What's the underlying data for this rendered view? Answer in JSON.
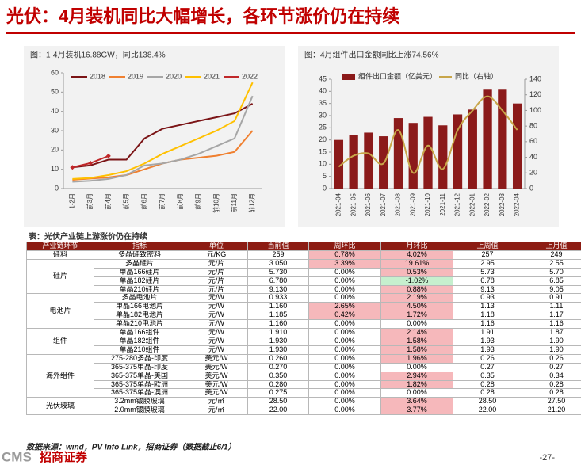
{
  "header": {
    "title": "光伏：4月装机同比大幅增长，各环节涨价仍在持续"
  },
  "chart_data": [
    {
      "type": "line",
      "title": "图：1-4月装机16.88GW，同比138.4%",
      "categories": [
        "1-2月",
        "前3月",
        "前4月",
        "前5月",
        "前6月",
        "前7月",
        "前8月",
        "前9月",
        "前10月",
        "前11月",
        "前12月"
      ],
      "ylim": [
        0,
        60
      ],
      "yticks": [
        0,
        10,
        20,
        30,
        40,
        50,
        60
      ],
      "series": [
        {
          "name": "2018",
          "color": "#7b1416",
          "values": [
            11,
            12,
            15,
            15,
            26,
            31,
            33,
            35,
            37,
            39,
            44
          ]
        },
        {
          "name": "2019",
          "color": "#f08030",
          "values": [
            4.5,
            5.2,
            5.8,
            7,
            10,
            13,
            15,
            16,
            17,
            19,
            30
          ]
        },
        {
          "name": "2020",
          "color": "#a6a6a6",
          "values": [
            3.5,
            4,
            5,
            7,
            12,
            13,
            15,
            18,
            22,
            26,
            48
          ]
        },
        {
          "name": "2021",
          "color": "#ffc000",
          "values": [
            5,
            5.5,
            7,
            9,
            13,
            18,
            22,
            26,
            30,
            35,
            55
          ]
        },
        {
          "name": "2022",
          "color": "#c0282a",
          "marker": true,
          "values": [
            11,
            13.2,
            16.88,
            null,
            null,
            null,
            null,
            null,
            null,
            null,
            null
          ]
        }
      ]
    },
    {
      "type": "bar-line",
      "title": "图：4月组件出口金额同比上涨74.56%",
      "categories": [
        "2021-04",
        "2021-05",
        "2021-06",
        "2021-07",
        "2021-08",
        "2021-09",
        "2021-10",
        "2021-11",
        "2021-12",
        "2022-01",
        "2022-02",
        "2022-03",
        "2022-04"
      ],
      "ylim": [
        0,
        45
      ],
      "yticks": [
        0,
        5,
        10,
        15,
        20,
        25,
        30,
        35,
        40,
        45
      ],
      "y2lim": [
        0,
        140
      ],
      "y2ticks": [
        0,
        20,
        40,
        60,
        80,
        100,
        120,
        140
      ],
      "series": [
        {
          "name": "组件出口金额（亿美元）",
          "color": "#8b1a1a",
          "kind": "bar",
          "values": [
            20,
            22,
            23,
            21.5,
            29,
            27,
            29.5,
            26,
            30.5,
            32.5,
            41,
            41,
            35
          ]
        },
        {
          "name": "同比（右轴）",
          "color": "#c8a64a",
          "kind": "line",
          "axis": "y2",
          "values": [
            28,
            42,
            45,
            32,
            75,
            20,
            55,
            25,
            75,
            100,
            118,
            100,
            75
          ]
        }
      ]
    }
  ],
  "table": {
    "title": "表：光伏产业链上游涨价仍在持续",
    "columns": [
      "产业链环节",
      "指标",
      "单位",
      "当前值",
      "周环比",
      "月环比",
      "上周值",
      "上月值"
    ],
    "groups": [
      {
        "name": "硅料",
        "rows": [
          [
            "多晶硅致密料",
            "元/KG",
            "259",
            "0.78%",
            "4.02%",
            "257",
            "249"
          ]
        ]
      },
      {
        "name": "硅片",
        "rows": [
          [
            "多晶硅片",
            "元/片",
            "3.050",
            "3.39%",
            "19.61%",
            "2.95",
            "2.55"
          ],
          [
            "单晶166硅片",
            "元/片",
            "5.730",
            "0.00%",
            "0.53%",
            "5.73",
            "5.70"
          ],
          [
            "单晶182硅片",
            "元/片",
            "6.780",
            "0.00%",
            "-1.02%",
            "6.78",
            "6.85"
          ],
          [
            "单晶210硅片",
            "元/片",
            "9.130",
            "0.00%",
            "0.88%",
            "9.13",
            "9.05"
          ]
        ]
      },
      {
        "name": "电池片",
        "rows": [
          [
            "多晶电池片",
            "元/W",
            "0.933",
            "0.00%",
            "2.19%",
            "0.93",
            "0.91"
          ],
          [
            "单晶166电池片",
            "元/W",
            "1.160",
            "2.65%",
            "4.50%",
            "1.13",
            "1.11"
          ],
          [
            "单晶182电池片",
            "元/W",
            "1.185",
            "0.42%",
            "1.72%",
            "1.18",
            "1.17"
          ],
          [
            "单晶210电池片",
            "元/W",
            "1.160",
            "0.00%",
            "0.00%",
            "1.16",
            "1.16"
          ]
        ]
      },
      {
        "name": "组件",
        "rows": [
          [
            "单晶166组件",
            "元/W",
            "1.910",
            "0.00%",
            "2.14%",
            "1.91",
            "1.87"
          ],
          [
            "单晶182组件",
            "元/W",
            "1.930",
            "0.00%",
            "1.58%",
            "1.93",
            "1.90"
          ],
          [
            "单晶210组件",
            "元/W",
            "1.930",
            "0.00%",
            "1.58%",
            "1.93",
            "1.90"
          ]
        ]
      },
      {
        "name": "海外组件",
        "rows": [
          [
            "275-280多晶-印度",
            "美元/W",
            "0.260",
            "0.00%",
            "1.96%",
            "0.26",
            "0.26"
          ],
          [
            "365-375单晶-印度",
            "美元/W",
            "0.270",
            "0.00%",
            "0.00%",
            "0.27",
            "0.27"
          ],
          [
            "365-375单晶-美国",
            "美元/W",
            "0.350",
            "0.00%",
            "2.94%",
            "0.35",
            "0.34"
          ],
          [
            "365-375单晶-欧洲",
            "美元/W",
            "0.280",
            "0.00%",
            "1.82%",
            "0.28",
            "0.28"
          ],
          [
            "365-375单晶-澳洲",
            "美元/W",
            "0.275",
            "0.00%",
            "0.00%",
            "0.28",
            "0.28"
          ]
        ]
      },
      {
        "name": "光伏玻璃",
        "rows": [
          [
            "3.2mm镀膜玻璃",
            "元/㎡",
            "28.50",
            "0.00%",
            "3.64%",
            "28.50",
            "27.50"
          ],
          [
            "2.0mm镀膜玻璃",
            "元/㎡",
            "22.00",
            "0.00%",
            "3.77%",
            "22.00",
            "21.20"
          ]
        ]
      }
    ]
  },
  "footer": {
    "source": "数据来源：wind，PV Info Link，招商证券（数据截止6/1）",
    "logo": "CMS",
    "logo_name": "招商证券",
    "page": "-27-"
  }
}
